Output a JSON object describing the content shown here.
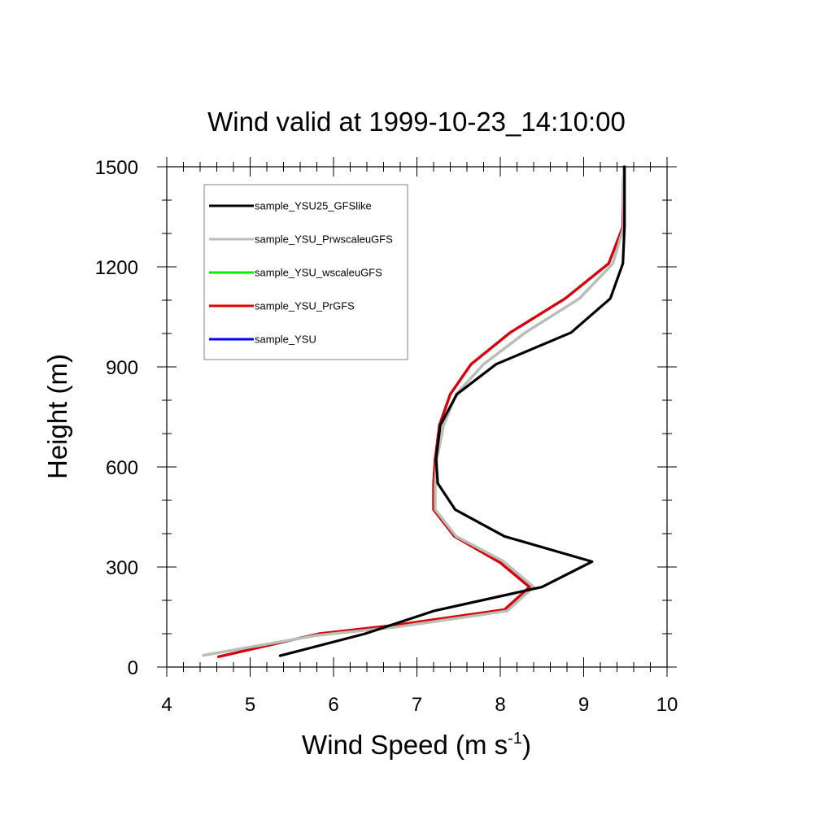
{
  "chart_data": {
    "type": "line",
    "title": "Wind valid at 1999-10-23_14:10:00",
    "xlabel": {
      "main": "Wind Speed (m s",
      "sup": "-1",
      "close": ")"
    },
    "ylabel": "Height (m)",
    "xlim": [
      4,
      10
    ],
    "ylim": [
      0,
      1500
    ],
    "x_ticks": [
      4,
      5,
      6,
      7,
      8,
      9,
      10
    ],
    "x_tick_labels": [
      "4",
      "5",
      "6",
      "7",
      "8",
      "9",
      "10"
    ],
    "y_ticks": [
      0,
      300,
      600,
      900,
      1200,
      1500
    ],
    "y_tick_labels": [
      "0",
      "300",
      "600",
      "900",
      "1200",
      "1500"
    ],
    "grid": false,
    "legend_position": "top-left",
    "series": [
      {
        "name": "sample_YSU",
        "color": "#0000ff",
        "points": [
          [
            4.62,
            31
          ],
          [
            5.83,
            100
          ],
          [
            6.75,
            126
          ],
          [
            8.05,
            172
          ],
          [
            8.35,
            240
          ],
          [
            8.0,
            313
          ],
          [
            7.45,
            392
          ],
          [
            7.2,
            472
          ],
          [
            7.2,
            551
          ],
          [
            7.22,
            625
          ],
          [
            7.27,
            725
          ],
          [
            7.4,
            818
          ],
          [
            7.65,
            908
          ],
          [
            8.12,
            1003
          ],
          [
            8.78,
            1105
          ],
          [
            9.3,
            1210
          ],
          [
            9.47,
            1320
          ],
          [
            9.48,
            1500
          ]
        ]
      },
      {
        "name": "sample_YSU_PrGFS",
        "color": "#e00000",
        "points": [
          [
            4.62,
            31
          ],
          [
            5.83,
            100
          ],
          [
            6.75,
            126
          ],
          [
            8.05,
            172
          ],
          [
            8.35,
            240
          ],
          [
            8.0,
            313
          ],
          [
            7.45,
            392
          ],
          [
            7.2,
            472
          ],
          [
            7.2,
            551
          ],
          [
            7.22,
            625
          ],
          [
            7.27,
            725
          ],
          [
            7.4,
            818
          ],
          [
            7.65,
            908
          ],
          [
            8.12,
            1003
          ],
          [
            8.78,
            1105
          ],
          [
            9.3,
            1210
          ],
          [
            9.47,
            1320
          ],
          [
            9.48,
            1500
          ]
        ]
      },
      {
        "name": "sample_YSU_wscaleuGFS",
        "color": "#00ee00",
        "points": [
          [
            4.44,
            35
          ],
          [
            5.8,
            95
          ],
          [
            6.75,
            120
          ],
          [
            8.08,
            168
          ],
          [
            8.4,
            240
          ],
          [
            8.03,
            318
          ],
          [
            7.47,
            392
          ],
          [
            7.22,
            472
          ],
          [
            7.22,
            551
          ],
          [
            7.24,
            625
          ],
          [
            7.32,
            725
          ],
          [
            7.47,
            818
          ],
          [
            7.8,
            908
          ],
          [
            8.3,
            1003
          ],
          [
            8.95,
            1105
          ],
          [
            9.35,
            1210
          ],
          [
            9.48,
            1320
          ],
          [
            9.48,
            1500
          ]
        ]
      },
      {
        "name": "sample_YSU_PrwscaleuGFS",
        "color": "#bcbcbc",
        "points": [
          [
            4.44,
            35
          ],
          [
            5.8,
            95
          ],
          [
            6.75,
            120
          ],
          [
            8.08,
            168
          ],
          [
            8.4,
            240
          ],
          [
            8.03,
            318
          ],
          [
            7.47,
            392
          ],
          [
            7.22,
            472
          ],
          [
            7.22,
            551
          ],
          [
            7.24,
            625
          ],
          [
            7.32,
            725
          ],
          [
            7.47,
            818
          ],
          [
            7.8,
            908
          ],
          [
            8.3,
            1003
          ],
          [
            8.95,
            1105
          ],
          [
            9.35,
            1210
          ],
          [
            9.48,
            1320
          ],
          [
            9.48,
            1500
          ]
        ]
      },
      {
        "name": "sample_YSU25_GFSlike",
        "color": "#000000",
        "points": [
          [
            5.36,
            34
          ],
          [
            6.38,
            100
          ],
          [
            7.2,
            168
          ],
          [
            8.5,
            240
          ],
          [
            9.1,
            316
          ],
          [
            8.05,
            392
          ],
          [
            7.46,
            472
          ],
          [
            7.25,
            551
          ],
          [
            7.23,
            625
          ],
          [
            7.28,
            725
          ],
          [
            7.48,
            818
          ],
          [
            7.95,
            908
          ],
          [
            8.85,
            1003
          ],
          [
            9.32,
            1105
          ],
          [
            9.47,
            1210
          ],
          [
            9.49,
            1320
          ],
          [
            9.49,
            1500
          ]
        ]
      }
    ],
    "legend_order": [
      "sample_YSU25_GFSlike",
      "sample_YSU_PrwscaleuGFS",
      "sample_YSU_wscaleuGFS",
      "sample_YSU_PrGFS",
      "sample_YSU"
    ]
  }
}
